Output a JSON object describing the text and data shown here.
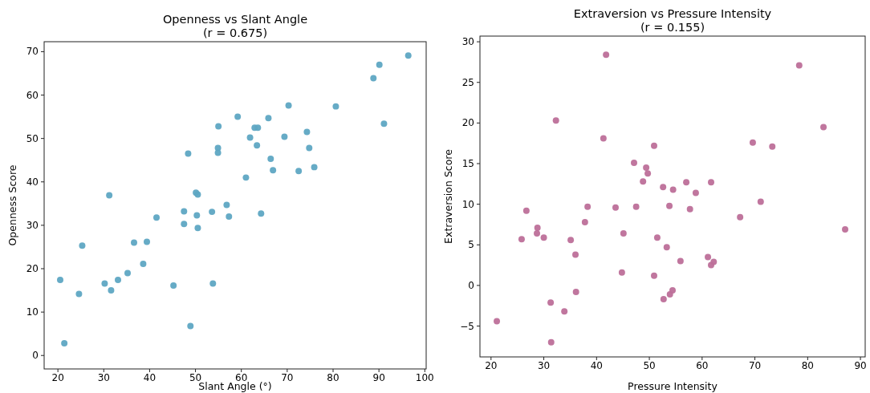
{
  "chart_data": [
    {
      "type": "scatter",
      "title": "Openness vs Slant Angle\n(r = 0.675)",
      "xlabel": "Slant Angle (°)",
      "ylabel": "Openness Score",
      "xlim": [
        17,
        100.3
      ],
      "ylim": [
        -3.1,
        72.3
      ],
      "xticks": [
        20,
        30,
        40,
        50,
        60,
        70,
        80,
        90,
        100
      ],
      "yticks": [
        0,
        10,
        20,
        30,
        40,
        50,
        60,
        70
      ],
      "grid": false,
      "marker": "circle",
      "series": [
        {
          "color": "#5ea6c3",
          "x": [
            20.5,
            21.4,
            24.6,
            25.3,
            30.2,
            31.2,
            31.6,
            33.1,
            35.2,
            36.6,
            38.6,
            39.4,
            41.5,
            45.2,
            47.5,
            47.5,
            48.4,
            48.9,
            50.1,
            50.5,
            50.3,
            50.5,
            53.6,
            53.8,
            55.0,
            54.9,
            54.9,
            56.8,
            57.3,
            59.2,
            61.0,
            61.9,
            62.9,
            63.6,
            63.4,
            64.3,
            65.9,
            66.4,
            66.9,
            69.4,
            70.3,
            72.5,
            74.3,
            74.8,
            75.9,
            80.6,
            88.8,
            90.1,
            91.1,
            96.4
          ],
          "values": [
            17.4,
            2.8,
            14.2,
            25.3,
            16.6,
            36.9,
            15.0,
            17.4,
            19.0,
            26.0,
            21.1,
            26.2,
            31.8,
            16.1,
            33.2,
            30.3,
            46.5,
            6.8,
            37.5,
            37.1,
            32.3,
            29.4,
            33.1,
            16.6,
            52.8,
            47.8,
            46.7,
            34.7,
            32.0,
            55.0,
            41.0,
            50.2,
            52.5,
            52.5,
            48.4,
            32.7,
            54.7,
            45.3,
            42.7,
            50.4,
            57.6,
            42.5,
            51.5,
            47.8,
            43.4,
            57.4,
            63.9,
            67.0,
            53.4,
            69.1
          ]
        }
      ]
    },
    {
      "type": "scatter",
      "title": "Extraversion vs Pressure Intensity\n(r = 0.155)",
      "xlabel": "Pressure Intensity",
      "ylabel": "Extraversion Score",
      "xlim": [
        17.9,
        90.9
      ],
      "ylim": [
        -8.8,
        30.7
      ],
      "xticks": [
        20,
        30,
        40,
        50,
        60,
        70,
        80,
        90
      ],
      "yticks": [
        -5,
        0,
        5,
        10,
        15,
        20,
        25,
        30
      ],
      "grid": false,
      "marker": "circle",
      "series": [
        {
          "color": "#bd6f99",
          "x": [
            21.1,
            25.8,
            26.7,
            28.7,
            28.8,
            30.0,
            31.3,
            31.4,
            32.3,
            33.9,
            35.1,
            36.0,
            36.1,
            37.8,
            38.3,
            41.3,
            41.8,
            43.6,
            44.8,
            45.1,
            47.1,
            47.5,
            48.8,
            49.4,
            49.7,
            50.9,
            50.9,
            51.5,
            52.6,
            52.7,
            53.3,
            53.8,
            53.9,
            54.4,
            54.5,
            55.9,
            57.0,
            57.7,
            58.8,
            61.1,
            61.7,
            61.7,
            62.2,
            67.2,
            69.6,
            71.1,
            73.3,
            78.4,
            83.0,
            87.1
          ],
          "values": [
            -4.4,
            5.7,
            9.2,
            6.4,
            7.1,
            5.9,
            -2.1,
            -7.0,
            20.3,
            -3.2,
            5.6,
            3.8,
            -0.8,
            7.8,
            9.7,
            18.1,
            28.4,
            9.6,
            1.6,
            6.4,
            15.1,
            9.7,
            12.8,
            14.5,
            13.8,
            17.2,
            1.2,
            5.9,
            12.1,
            -1.7,
            4.7,
            9.8,
            -1.1,
            -0.6,
            11.8,
            3.0,
            12.7,
            9.4,
            11.4,
            3.5,
            12.7,
            2.5,
            2.9,
            8.4,
            17.6,
            10.3,
            17.1,
            27.1,
            19.5,
            6.9
          ]
        }
      ]
    }
  ]
}
